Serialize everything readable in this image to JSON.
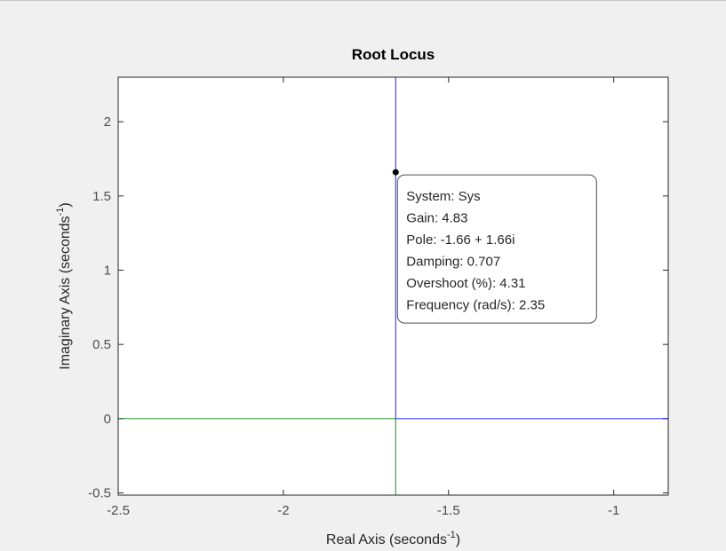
{
  "chart_data": {
    "type": "line",
    "title": "Root Locus",
    "xlabel": "Real Axis (seconds",
    "ylabel": "Imaginary Axis (seconds",
    "label_exponent": "-1",
    "label_close": ")",
    "xlim": [
      -2.5,
      -0.835
    ],
    "ylim": [
      -0.515,
      2.3
    ],
    "xticks": [
      -2.5,
      -2,
      -1.5,
      -1
    ],
    "xtick_labels": [
      "-2.5",
      "-2",
      "-1.5",
      "-1"
    ],
    "yticks": [
      -0.5,
      0,
      0.5,
      1,
      1.5,
      2
    ],
    "ytick_labels": [
      "-0.5",
      "0",
      "0.5",
      "1",
      "1.5",
      "2"
    ],
    "grid": false,
    "series": [
      {
        "color": "#0000ff",
        "points": [
          [
            -1.66,
            2.3
          ],
          [
            -1.66,
            0
          ],
          [
            -0.835,
            0
          ]
        ]
      },
      {
        "color": "#008000",
        "points": [
          [
            -2.5,
            0
          ],
          [
            -1.66,
            0
          ],
          [
            -1.66,
            -0.515
          ]
        ]
      }
    ],
    "datatip": {
      "point": [
        -1.66,
        1.66
      ],
      "lines": [
        "System: Sys",
        "Gain: 4.83",
        "Pole: -1.66 + 1.66i",
        "Damping: 0.707",
        "Overshoot (%): 4.31",
        "Frequency (rad/s): 2.35"
      ]
    }
  },
  "colors": {
    "background": "#f0f0f0",
    "axes_bg": "#ffffff",
    "axes_line": "#262626",
    "tip_border": "#4d4d4d",
    "marker": "#000000"
  }
}
